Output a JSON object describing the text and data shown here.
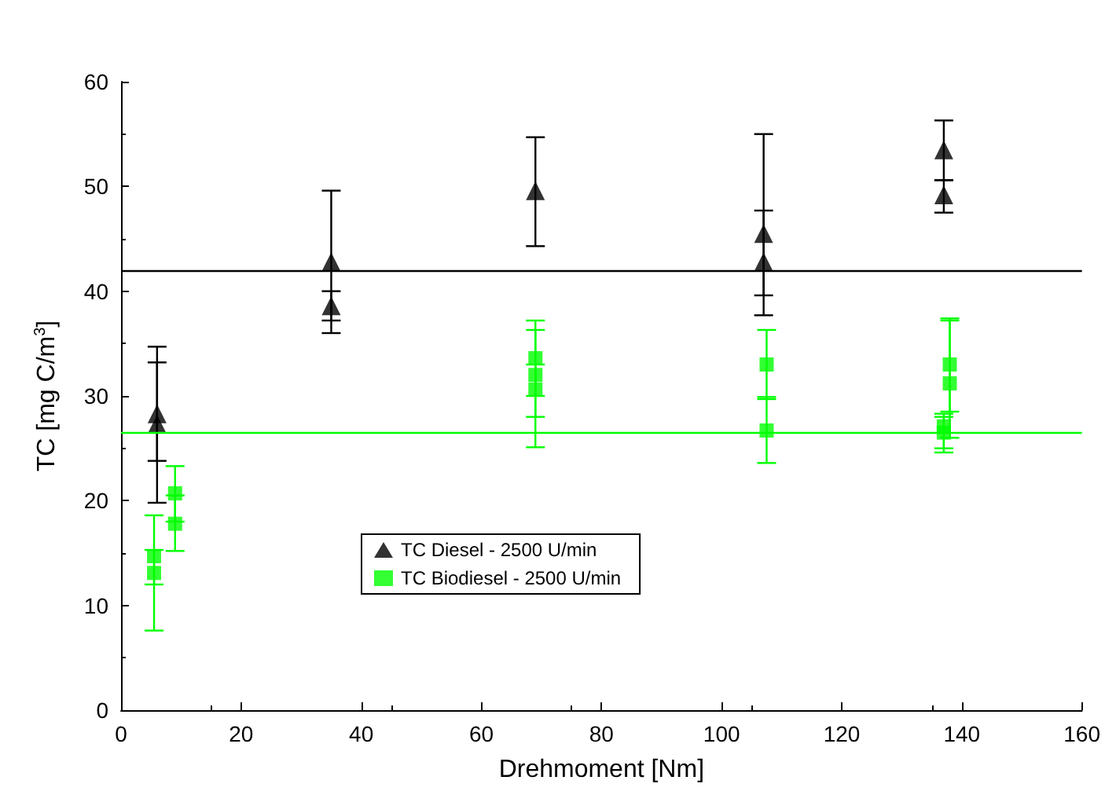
{
  "chart_data": {
    "type": "scatter",
    "xlabel": "Drehmoment [Nm]",
    "ylabel": "TC [mg C/m$^{3}$]",
    "xlim": [
      0,
      160
    ],
    "xticks": [
      0,
      20,
      40,
      60,
      80,
      100,
      120,
      140,
      160
    ],
    "ylim": [
      0,
      60
    ],
    "yticks": [
      0,
      10,
      20,
      30,
      40,
      50,
      60
    ],
    "grid": false,
    "legend": "center left",
    "series": [
      {
        "name": "TC Diesel - 2500 U/min",
        "color": "#000000",
        "marker": "triangle",
        "x": [
          6,
          6,
          35,
          35,
          69,
          107,
          107,
          137,
          137
        ],
        "values": [
          28.3,
          27.3,
          42.8,
          38.6,
          49.6,
          45.5,
          42.8,
          53.5,
          49.2
        ],
        "errors": [
          [
            19.8,
            34.7
          ],
          [
            23.8,
            33.2
          ],
          [
            37.2,
            49.6
          ],
          [
            36,
            40
          ],
          [
            44.3,
            54.7
          ],
          [
            37.7,
            55
          ],
          [
            39.6,
            47.7
          ],
          [
            50.6,
            56.3
          ],
          [
            47.5,
            50.6
          ]
        ]
      },
      {
        "name": "TC Biodiesel - 2500 U/min",
        "color": "#00ff00",
        "marker": "square",
        "x": [
          5.5,
          5.5,
          9,
          9,
          69,
          69,
          69,
          107.5,
          107.5,
          138,
          138,
          137,
          137
        ],
        "values": [
          14.7,
          13.1,
          20.7,
          17.8,
          33.6,
          32,
          30.6,
          33,
          26.7,
          33,
          31.2,
          27.1,
          26.5
        ],
        "errors": [
          [
            12,
            18.6
          ],
          [
            7.6,
            15.3
          ],
          [
            18,
            23.3
          ],
          [
            15.2,
            20.5
          ],
          [
            30,
            37.2
          ],
          [
            28,
            36.3
          ],
          [
            25.1,
            33
          ],
          [
            29.7,
            36.3
          ],
          [
            23.6,
            29.9
          ],
          [
            28.5,
            37.4
          ],
          [
            26,
            37.2
          ],
          [
            24.6,
            28.3
          ],
          [
            25,
            28
          ]
        ]
      }
    ],
    "ref_lines": [
      {
        "axis": "y",
        "value": 42,
        "color": "#000000"
      },
      {
        "axis": "y",
        "value": 26.5,
        "color": "#00ff00"
      }
    ]
  }
}
